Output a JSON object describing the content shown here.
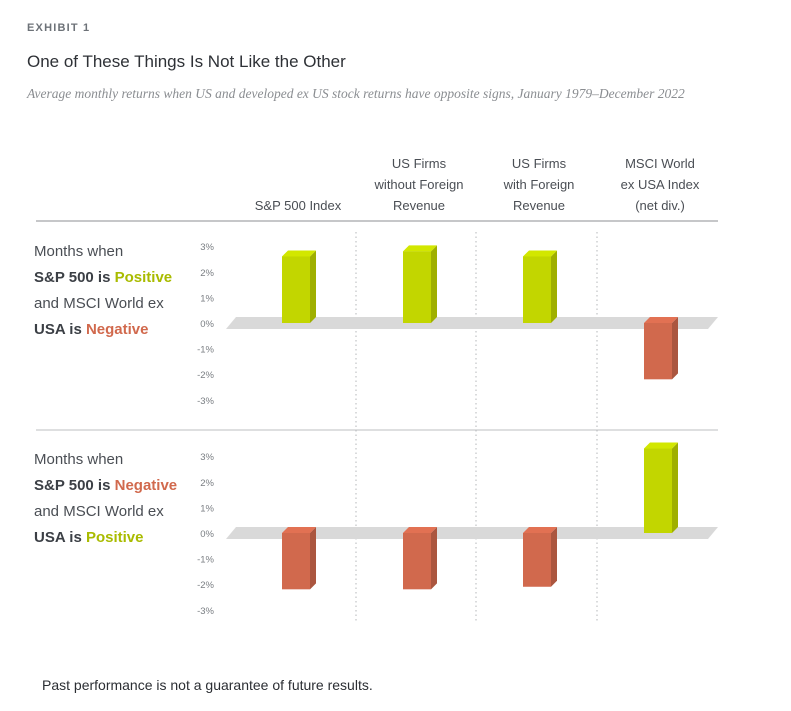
{
  "exhibit_label": "EXHIBIT 1",
  "title": "One of These Things Is Not Like the Other",
  "subtitle": "Average monthly returns when US and developed ex US stock returns have opposite signs, January 1979–December 2022",
  "footer": "Past performance is not a guarantee of future results.",
  "colors": {
    "positive": "#c2d600",
    "negative": "#d1694d",
    "baseline": "#d9d9d9",
    "text": "#3b3f45"
  },
  "chart_data": {
    "type": "bar",
    "categories": [
      [
        "S&P 500 Index"
      ],
      [
        "US Firms",
        "without Foreign",
        "Revenue"
      ],
      [
        "US Firms",
        "with Foreign",
        "Revenue"
      ],
      [
        "MSCI World",
        "ex USA Index",
        "(net div.)"
      ]
    ],
    "yticks": [
      "3%",
      "2%",
      "1%",
      "0%",
      "-1%",
      "-2%",
      "-3%"
    ],
    "ylim": [
      -3,
      3
    ],
    "panels": [
      {
        "label": [
          [
            {
              "t": "Months when",
              "s": "plain"
            }
          ],
          [
            {
              "t": "S&P 500 is ",
              "s": "bold"
            },
            {
              "t": "Positive",
              "s": "pos"
            }
          ],
          [
            {
              "t": "and MSCI World ex",
              "s": "plain"
            }
          ],
          [
            {
              "t": "USA is ",
              "s": "bold"
            },
            {
              "t": "Negative",
              "s": "neg"
            }
          ]
        ],
        "values": [
          2.6,
          2.8,
          2.6,
          -2.2
        ]
      },
      {
        "label": [
          [
            {
              "t": "Months when",
              "s": "plain"
            }
          ],
          [
            {
              "t": "S&P 500 is ",
              "s": "bold"
            },
            {
              "t": "Negative",
              "s": "neg"
            }
          ],
          [
            {
              "t": "and MSCI World ex",
              "s": "plain"
            }
          ],
          [
            {
              "t": "USA is ",
              "s": "bold"
            },
            {
              "t": "Positive",
              "s": "pos"
            }
          ]
        ],
        "values": [
          -2.2,
          -2.2,
          -2.1,
          3.3
        ]
      }
    ]
  }
}
